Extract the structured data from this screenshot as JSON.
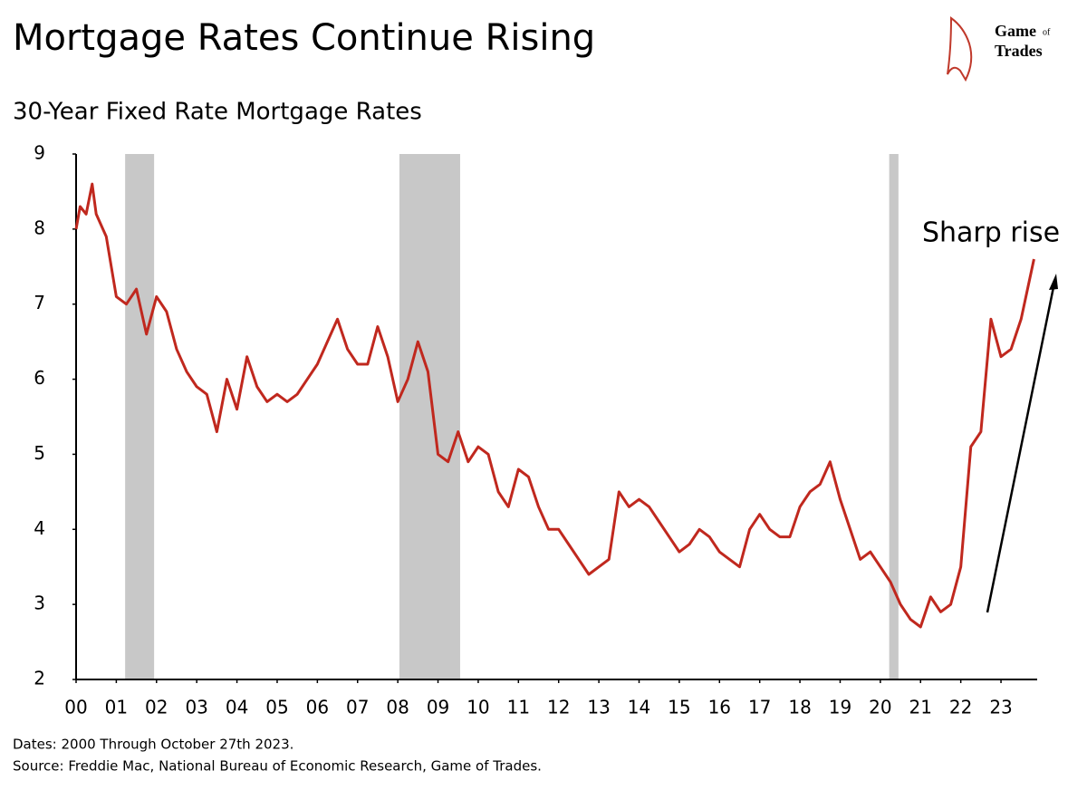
{
  "chart_data": {
    "type": "line",
    "title": "Mortgage Rates Continue Rising",
    "subtitle": "30-Year Fixed Rate Mortgage Rates",
    "logo": [
      "Game",
      "of",
      "Trades"
    ],
    "annotation": "Sharp rise",
    "footnotes": [
      "Dates: 2000 Through October 27th 2023.",
      "Source: Freddie Mac, National Bureau of Economic Research, Game of Trades."
    ],
    "xlim": [
      2000,
      2023.9
    ],
    "ylim": [
      2,
      9
    ],
    "yticks": [
      2,
      3,
      4,
      5,
      6,
      7,
      8,
      9
    ],
    "xticks": [
      {
        "value": 2000,
        "label": "00"
      },
      {
        "value": 2001,
        "label": "01"
      },
      {
        "value": 2002,
        "label": "02"
      },
      {
        "value": 2003,
        "label": "03"
      },
      {
        "value": 2004,
        "label": "04"
      },
      {
        "value": 2005,
        "label": "05"
      },
      {
        "value": 2006,
        "label": "06"
      },
      {
        "value": 2007,
        "label": "07"
      },
      {
        "value": 2008,
        "label": "08"
      },
      {
        "value": 2009,
        "label": "09"
      },
      {
        "value": 2010,
        "label": "10"
      },
      {
        "value": 2011,
        "label": "11"
      },
      {
        "value": 2012,
        "label": "12"
      },
      {
        "value": 2013,
        "label": "13"
      },
      {
        "value": 2014,
        "label": "14"
      },
      {
        "value": 2015,
        "label": "15"
      },
      {
        "value": 2016,
        "label": "16"
      },
      {
        "value": 2017,
        "label": "17"
      },
      {
        "value": 2018,
        "label": "18"
      },
      {
        "value": 2019,
        "label": "19"
      },
      {
        "value": 2020,
        "label": "20"
      },
      {
        "value": 2021,
        "label": "21"
      },
      {
        "value": 2022,
        "label": "22"
      },
      {
        "value": 2023,
        "label": "23"
      }
    ],
    "recessions": [
      [
        2001.22,
        2001.94
      ],
      [
        2008.04,
        2009.55
      ],
      [
        2020.22,
        2020.45
      ]
    ],
    "recession_color": "#c8c8c8",
    "grid": false,
    "x": [
      2000.0,
      2000.1,
      2000.25,
      2000.4,
      2000.5,
      2000.75,
      2001.0,
      2001.25,
      2001.5,
      2001.75,
      2002.0,
      2002.25,
      2002.5,
      2002.75,
      2003.0,
      2003.25,
      2003.5,
      2003.75,
      2004.0,
      2004.25,
      2004.5,
      2004.75,
      2005.0,
      2005.25,
      2005.5,
      2005.75,
      2006.0,
      2006.25,
      2006.5,
      2006.75,
      2007.0,
      2007.25,
      2007.5,
      2007.75,
      2008.0,
      2008.25,
      2008.5,
      2008.75,
      2009.0,
      2009.25,
      2009.5,
      2009.75,
      2010.0,
      2010.25,
      2010.5,
      2010.75,
      2011.0,
      2011.25,
      2011.5,
      2011.75,
      2012.0,
      2012.25,
      2012.5,
      2012.75,
      2013.0,
      2013.25,
      2013.5,
      2013.75,
      2014.0,
      2014.25,
      2014.5,
      2014.75,
      2015.0,
      2015.25,
      2015.5,
      2015.75,
      2016.0,
      2016.25,
      2016.5,
      2016.75,
      2017.0,
      2017.25,
      2017.5,
      2017.75,
      2018.0,
      2018.25,
      2018.5,
      2018.75,
      2019.0,
      2019.25,
      2019.5,
      2019.75,
      2020.0,
      2020.25,
      2020.5,
      2020.75,
      2021.0,
      2021.25,
      2021.5,
      2021.75,
      2022.0,
      2022.25,
      2022.5,
      2022.75,
      2023.0,
      2023.25,
      2023.5,
      2023.82
    ],
    "series": [
      {
        "name": "30-Year Fixed Rate",
        "color": "#c0281e",
        "values": [
          8.0,
          8.3,
          8.2,
          8.6,
          8.2,
          7.9,
          7.1,
          7.0,
          7.2,
          6.6,
          7.1,
          6.9,
          6.4,
          6.1,
          5.9,
          5.8,
          5.3,
          6.0,
          5.6,
          6.3,
          5.9,
          5.7,
          5.8,
          5.7,
          5.8,
          6.0,
          6.2,
          6.5,
          6.8,
          6.4,
          6.2,
          6.2,
          6.7,
          6.3,
          5.7,
          6.0,
          6.5,
          6.1,
          5.0,
          4.9,
          5.3,
          4.9,
          5.1,
          5.0,
          4.5,
          4.3,
          4.8,
          4.7,
          4.3,
          4.0,
          4.0,
          3.8,
          3.6,
          3.4,
          3.5,
          3.6,
          4.5,
          4.3,
          4.4,
          4.3,
          4.1,
          3.9,
          3.7,
          3.8,
          4.0,
          3.9,
          3.7,
          3.6,
          3.5,
          4.0,
          4.2,
          4.0,
          3.9,
          3.9,
          4.3,
          4.5,
          4.6,
          4.9,
          4.4,
          4.0,
          3.6,
          3.7,
          3.5,
          3.3,
          3.0,
          2.8,
          2.7,
          3.1,
          2.9,
          3.0,
          3.5,
          5.1,
          5.3,
          6.8,
          6.3,
          6.4,
          6.8,
          7.6
        ]
      }
    ]
  }
}
